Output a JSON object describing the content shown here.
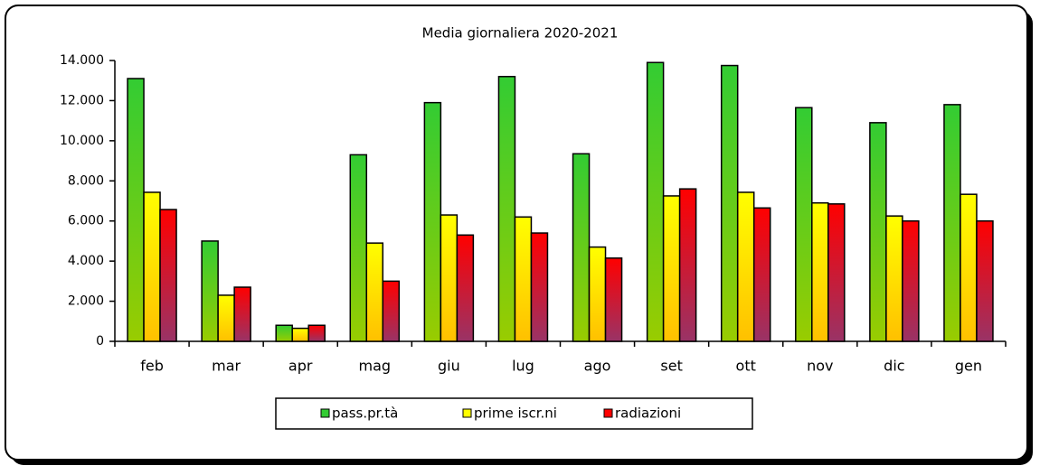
{
  "chart_data": {
    "type": "bar",
    "title": "Media giornaliera  2020-2021",
    "categories": [
      "feb",
      "mar",
      "apr",
      "mag",
      "giu",
      "lug",
      "ago",
      "set",
      "ott",
      "nov",
      "dic",
      "gen"
    ],
    "series": [
      {
        "name": "pass.pr.tà",
        "color": "#33cc33",
        "values": [
          13100,
          5000,
          800,
          9300,
          11900,
          13200,
          9350,
          13900,
          13750,
          11650,
          10900,
          11800
        ]
      },
      {
        "name": "prime iscr.ni",
        "color": "#ffff00",
        "values": [
          7430,
          2300,
          650,
          4900,
          6300,
          6200,
          4700,
          7250,
          7430,
          6900,
          6250,
          7330
        ]
      },
      {
        "name": "radiazioni",
        "color": "#ff0000",
        "values": [
          6570,
          2700,
          800,
          3000,
          5300,
          5400,
          4150,
          7600,
          6650,
          6850,
          6000,
          6000
        ]
      }
    ],
    "ylim": [
      0,
      14000
    ],
    "yticks": [
      0,
      {
        "value": 2000,
        "label": "2.000"
      },
      {
        "value": 4000,
        "label": "4.000"
      },
      {
        "value": 6000,
        "label": "6.000"
      },
      {
        "value": 8000,
        "label": "8.000"
      },
      {
        "value": 10000,
        "label": "10.000"
      },
      {
        "value": 12000,
        "label": "12.000"
      },
      {
        "value": 14000,
        "label": "14.000"
      }
    ],
    "legend": "bottom"
  }
}
